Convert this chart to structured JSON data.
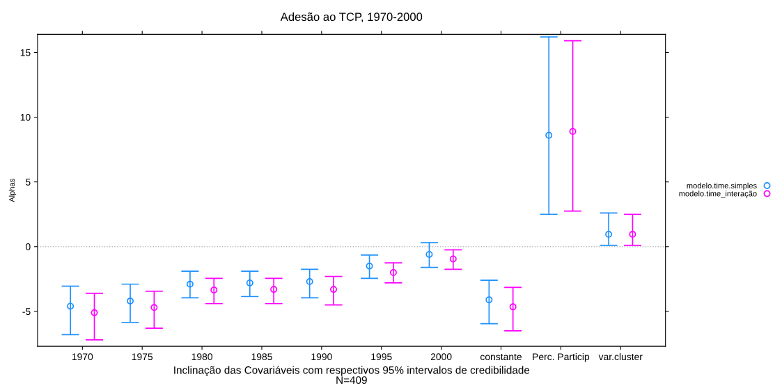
{
  "chart_data": {
    "type": "scatter",
    "title": "Adesão ao TCP, 1970-2000",
    "xlabel": "Inclinação das Covariáveis com respectivos 95% intervalos de credibilidade\nN=409",
    "ylabel": "Alphas",
    "categories": [
      "1970",
      "1975",
      "1980",
      "1985",
      "1990",
      "1995",
      "2000",
      "constante",
      "Perc. Particip",
      "var.cluster"
    ],
    "series": [
      {
        "name": "modelo.time.simples",
        "color": "#1e90ff",
        "values": [
          -4.6,
          -4.2,
          -2.9,
          -2.8,
          -2.7,
          -1.5,
          -0.6,
          -4.1,
          8.6,
          0.95
        ],
        "errors": [
          [
            -6.8,
            -3.05
          ],
          [
            -5.85,
            -2.9
          ],
          [
            -3.95,
            -1.9
          ],
          [
            -3.85,
            -1.9
          ],
          [
            -3.95,
            -1.75
          ],
          [
            -2.45,
            -0.65
          ],
          [
            -1.6,
            0.3
          ],
          [
            -5.95,
            -2.6
          ],
          [
            2.5,
            16.2
          ],
          [
            0.1,
            2.6
          ]
        ]
      },
      {
        "name": "modelo.time_interação",
        "color": "#ff00ff",
        "values": [
          -5.1,
          -4.7,
          -3.35,
          -3.3,
          -3.3,
          -2.0,
          -0.95,
          -4.65,
          8.9,
          0.95
        ],
        "errors": [
          [
            -7.2,
            -3.6
          ],
          [
            -6.3,
            -3.45
          ],
          [
            -4.4,
            -2.45
          ],
          [
            -4.4,
            -2.45
          ],
          [
            -4.5,
            -2.3
          ],
          [
            -2.8,
            -1.25
          ],
          [
            -1.75,
            -0.25
          ],
          [
            -6.5,
            -3.15
          ],
          [
            2.75,
            15.9
          ],
          [
            0.1,
            2.5
          ]
        ]
      }
    ],
    "ylim": [
      -7.7,
      16.4
    ],
    "yticks": [
      -5,
      0,
      5,
      10,
      15
    ],
    "ref_lines": [
      {
        "axis": "y",
        "value": 0,
        "color": "#bbbbbb",
        "line_style": "dotted"
      }
    ],
    "marker": "circle",
    "legend": "right",
    "grid": false
  }
}
